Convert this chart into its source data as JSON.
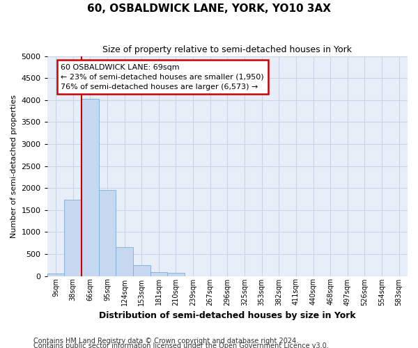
{
  "title": "60, OSBALDWICK LANE, YORK, YO10 3AX",
  "subtitle": "Size of property relative to semi-detached houses in York",
  "xlabel": "Distribution of semi-detached houses by size in York",
  "ylabel": "Number of semi-detached properties",
  "footnote1": "Contains HM Land Registry data © Crown copyright and database right 2024.",
  "footnote2": "Contains public sector information licensed under the Open Government Licence v3.0.",
  "bins": [
    "9sqm",
    "38sqm",
    "66sqm",
    "95sqm",
    "124sqm",
    "153sqm",
    "181sqm",
    "210sqm",
    "239sqm",
    "267sqm",
    "296sqm",
    "325sqm",
    "353sqm",
    "382sqm",
    "411sqm",
    "440sqm",
    "468sqm",
    "497sqm",
    "526sqm",
    "554sqm",
    "583sqm"
  ],
  "values": [
    55,
    1740,
    4030,
    1950,
    660,
    240,
    90,
    65,
    0,
    0,
    0,
    0,
    0,
    0,
    0,
    0,
    0,
    0,
    0,
    0,
    0
  ],
  "bar_color": "#c5d8f0",
  "bar_edge_color": "#7aadd4",
  "vline_color": "#cc0000",
  "vline_bin_index": 2,
  "annotation_text_line1": "60 OSBALDWICK LANE: 69sqm",
  "annotation_text_line2": "← 23% of semi-detached houses are smaller (1,950)",
  "annotation_text_line3": "76% of semi-detached houses are larger (6,573) →",
  "annotation_box_color": "#ffffff",
  "annotation_box_edge": "#cc0000",
  "ylim": [
    0,
    5000
  ],
  "yticks": [
    0,
    500,
    1000,
    1500,
    2000,
    2500,
    3000,
    3500,
    4000,
    4500,
    5000
  ],
  "grid_color": "#c8d4e8",
  "bg_color": "#e8eef8",
  "fig_bg_color": "#ffffff",
  "title_fontsize": 11,
  "subtitle_fontsize": 9,
  "xlabel_fontsize": 9,
  "ylabel_fontsize": 8,
  "footnote_fontsize": 7
}
